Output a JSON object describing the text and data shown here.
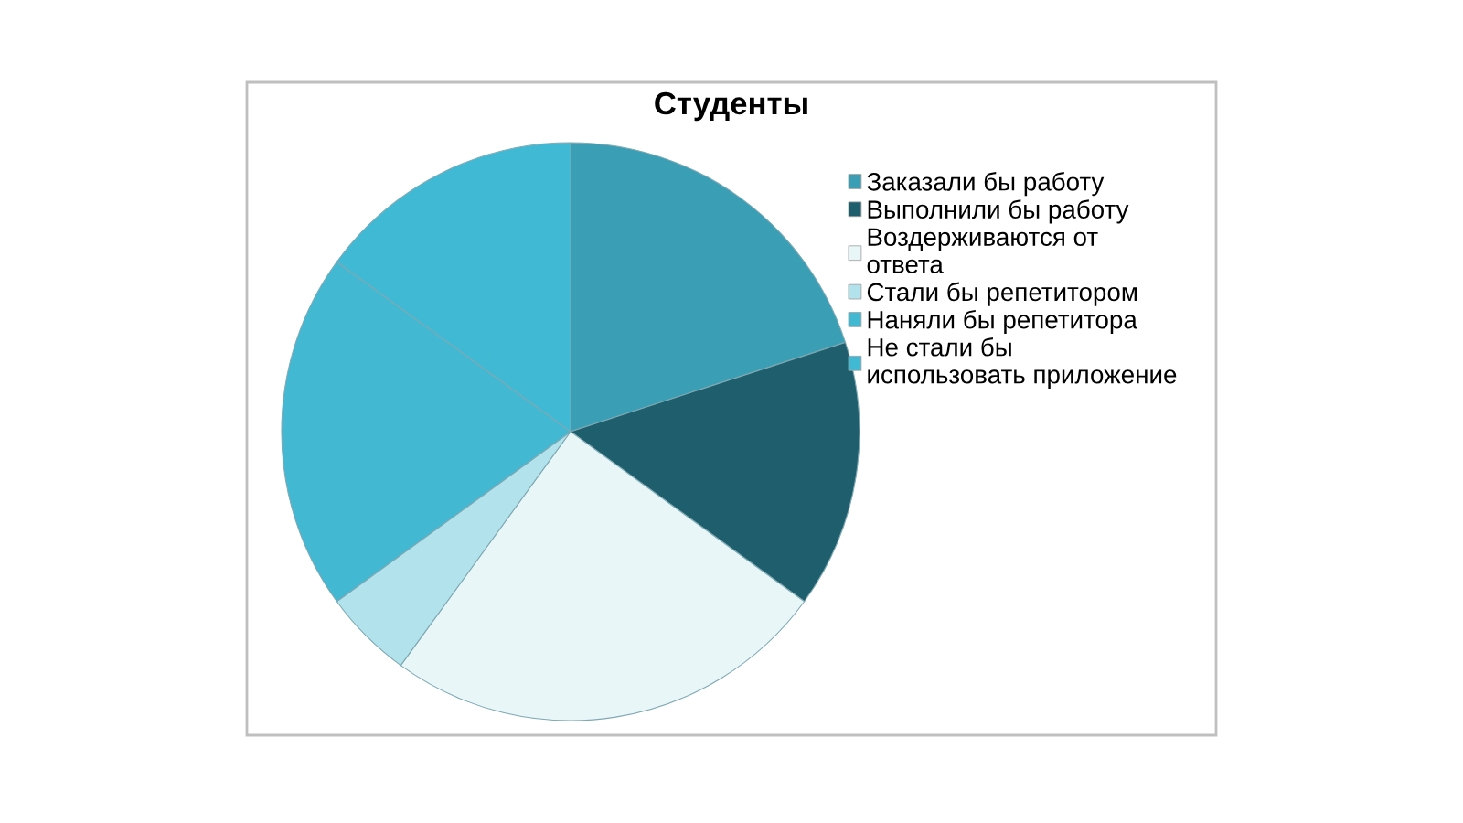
{
  "chart_data": {
    "type": "pie",
    "title": "Студенты",
    "categories": [
      "Заказали бы работу",
      "Выполнили бы работу",
      "Воздерживаются от\nответа",
      "Стали бы репетитором",
      "Наняли бы репетитора",
      "Не стали бы\nиспользовать приложение"
    ],
    "values": [
      20,
      15,
      25,
      5,
      20,
      15
    ],
    "colors": [
      "#3a9fb5",
      "#1f5f6d",
      "#e8f6f8",
      "#b2e2ec",
      "#42b8d2",
      "#40b9d4"
    ],
    "legend": "right"
  }
}
